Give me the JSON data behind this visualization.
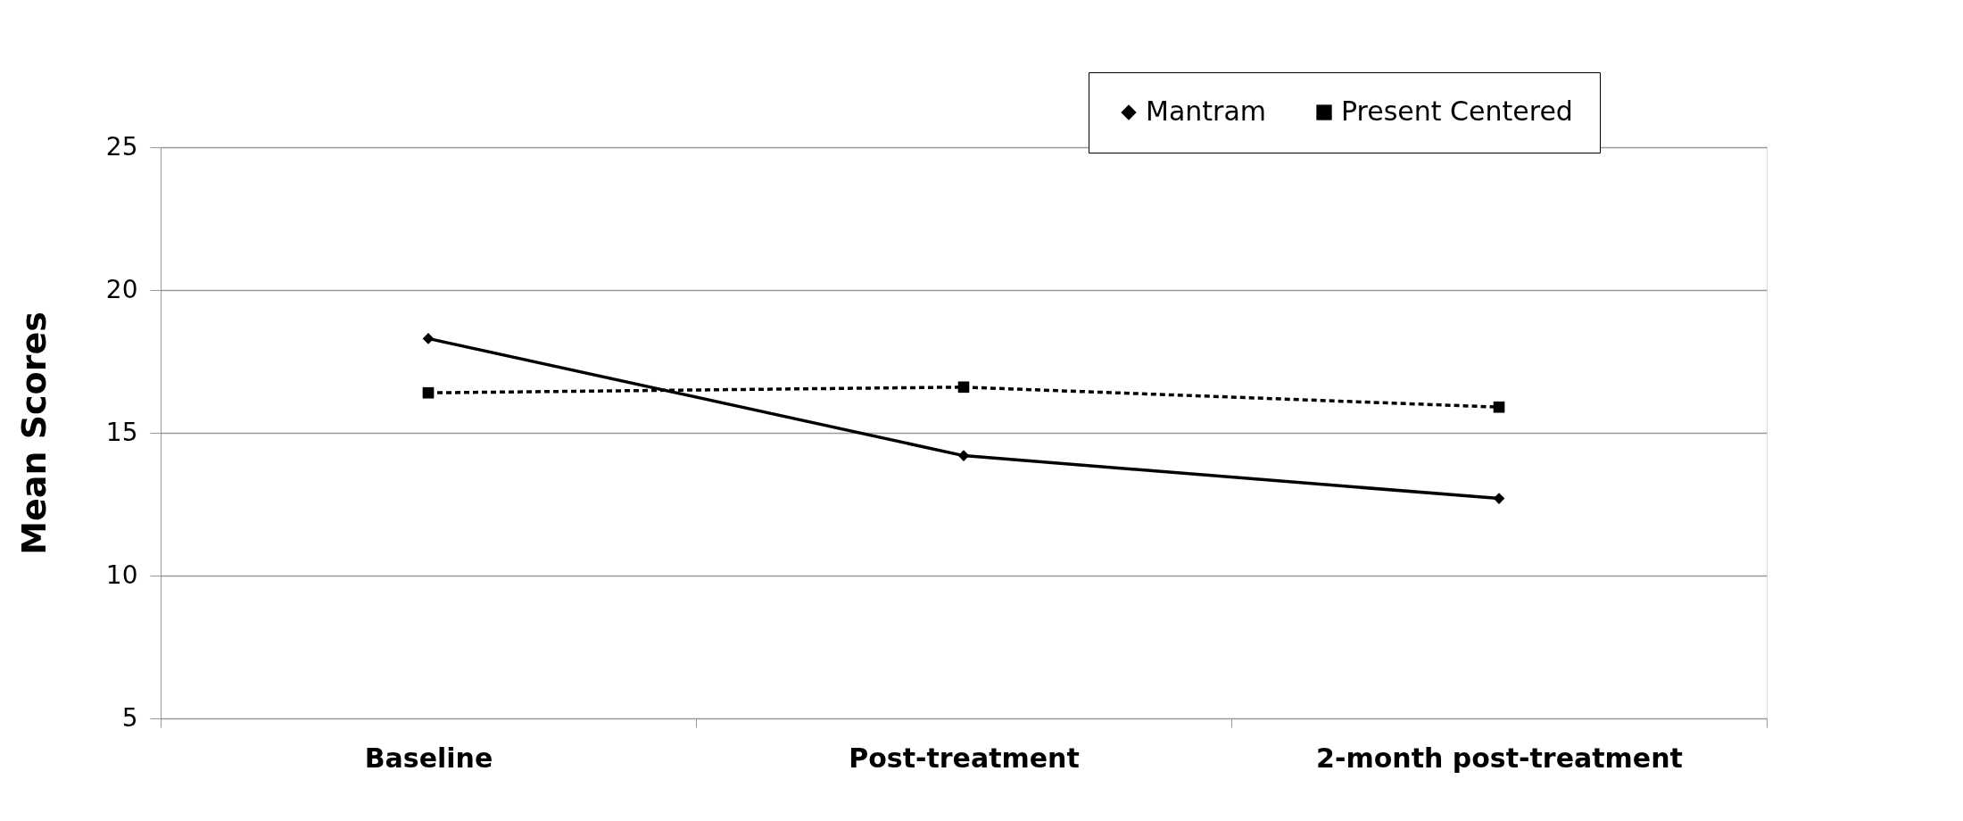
{
  "chart_data": {
    "type": "line",
    "ylabel": "Mean Scores",
    "categories": [
      "Baseline",
      "Post-treatment",
      "2-month post-treatment"
    ],
    "series": [
      {
        "name": "Mantram",
        "color": "#000000",
        "values": [
          18.3,
          14.2,
          12.7
        ],
        "marker": "diamond",
        "line_style": "solid"
      },
      {
        "name": "Present Centered",
        "color": "#000000",
        "values": [
          16.4,
          16.6,
          15.9
        ],
        "marker": "square",
        "line_style": "dashed"
      }
    ],
    "ylim": [
      5,
      25
    ],
    "yticks": [
      5,
      10,
      15,
      20,
      25
    ],
    "grid": "y",
    "legend": "top right"
  }
}
